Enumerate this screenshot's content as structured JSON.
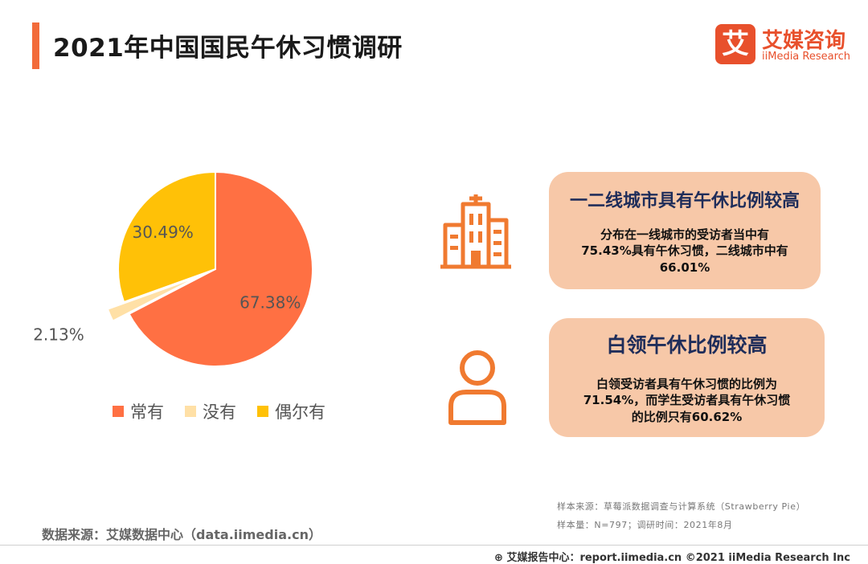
{
  "header": {
    "title": "2021年中国国民午休习惯调研"
  },
  "logo": {
    "mark": "艾",
    "name_cn": "艾媒咨询",
    "name_en": "iiMedia Research"
  },
  "colors": {
    "accent": "#f26b3a",
    "often": "#ff7043",
    "never": "#ffe0a6",
    "sometimes": "#ffc107",
    "card": "#f7c8a8",
    "card_title": "#1f2d5a"
  },
  "chart_data": {
    "type": "pie",
    "categories": [
      "常有",
      "没有",
      "偶尔有"
    ],
    "values": [
      67.38,
      2.13,
      30.49
    ],
    "labels": [
      "67.38%",
      "2.13%",
      "30.49%"
    ],
    "legend_position": "bottom"
  },
  "cards": [
    {
      "icon": "building-icon",
      "title": "一二线城市具有午休比例较高",
      "body": [
        "分布在一线城市的受访者当中有",
        "75.43%具有午休习惯，二线城市中有",
        "66.01%"
      ]
    },
    {
      "icon": "person-icon",
      "title": "白领午休比例较高",
      "body": [
        "白领受访者具有午休习惯的比例为",
        "71.54%，而学生受访者具有午休习惯",
        "的比例只有60.62%"
      ]
    }
  ],
  "footer": {
    "data_source": "数据来源：艾媒数据中心（data.iimedia.cn）",
    "sample_source": "样本来源：草莓派数据调查与计算系统（Strawberry Pie）",
    "sample_info": "样本量：N=797；调研时间：2021年8月",
    "copyright": "艾媒报告中心：report.iimedia.cn ©2021  iiMedia Research  Inc"
  }
}
